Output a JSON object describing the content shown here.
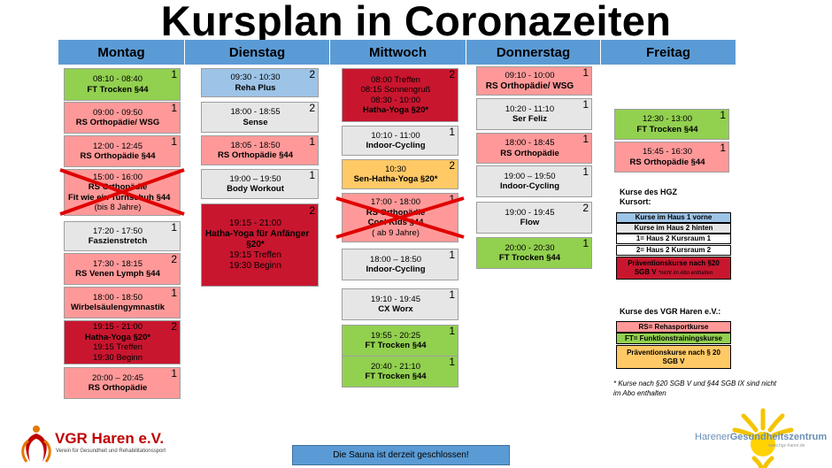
{
  "title": "Kursplan in Coronazeiten",
  "days": [
    "Montag",
    "Dienstag",
    "Mittwoch",
    "Donnerstag",
    "Freitag"
  ],
  "montag": [
    {
      "lines": [
        "08:10 - 08:40",
        "FT Trocken §44"
      ],
      "badge": "1"
    },
    {
      "lines": [
        "09:00 - 09:50",
        "RS Orthopädie/ WSG"
      ],
      "badge": "1"
    },
    {
      "lines": [
        "12:00 - 12:45",
        "RS Orthopädie §44"
      ],
      "badge": "1"
    },
    {
      "lines": [
        "15:00 - 16:00",
        "RS Orthopädie",
        "Fit wie ein Turnschuh §44",
        "(bis 8 Jahre)"
      ],
      "badge": ""
    },
    {
      "lines": [
        "17:20 - 17:50",
        "Faszienstretch"
      ],
      "badge": "1"
    },
    {
      "lines": [
        "17:30 - 18:15",
        "RS Venen Lymph §44"
      ],
      "badge": "2"
    },
    {
      "lines": [
        "18:00 - 18:50",
        "Wirbelsäulengymnastik"
      ],
      "badge": "1"
    },
    {
      "lines": [
        "19:15 - 21:00",
        "Hatha-Yoga §20*",
        "19:15 Treffen",
        "19:30 Beginn"
      ],
      "badge": "2"
    },
    {
      "lines": [
        "20:00 – 20:45",
        "RS Orthopädie"
      ],
      "badge": "1"
    }
  ],
  "dienstag": [
    {
      "lines": [
        "09:30 - 10:30",
        "Reha Plus"
      ],
      "badge": "2"
    },
    {
      "lines": [
        "18:00 - 18:55",
        "Sense"
      ],
      "badge": "2"
    },
    {
      "lines": [
        "18:05 - 18:50",
        "RS Orthopädie §44"
      ],
      "badge": "1"
    },
    {
      "lines": [
        "19:00 – 19:50",
        "Body Workout"
      ],
      "badge": "1"
    },
    {
      "lines": [
        "19:15 - 21:00",
        "Hatha-Yoga für Anfänger",
        "§20*",
        "19:15 Treffen",
        "19:30 Beginn"
      ],
      "badge": "2"
    }
  ],
  "mittwoch": [
    {
      "lines": [
        "08:00 Treffen",
        "08:15 Sonnengruß",
        "08:30 - 10:00",
        "Hatha-Yoga §20*"
      ],
      "badge": "2"
    },
    {
      "lines": [
        "10:10 - 11:00",
        "Indoor-Cycling"
      ],
      "badge": "1"
    },
    {
      "lines": [
        "10:30",
        "Sen-Hatha-Yoga §20*"
      ],
      "badge": "2"
    },
    {
      "lines": [
        "17:00 - 18:00",
        "RS Orthopädie",
        "Cool Kids §44",
        "( ab 9 Jahre)"
      ],
      "badge": "1"
    },
    {
      "lines": [
        "18:00 – 18:50",
        "Indoor-Cycling"
      ],
      "badge": "1"
    },
    {
      "lines": [
        "19:10 - 19:45",
        "CX Worx"
      ],
      "badge": "1"
    },
    {
      "lines": [
        "19:55 - 20:25",
        "FT Trocken §44"
      ],
      "badge": "1"
    },
    {
      "lines": [
        "20:40 - 21:10",
        "FT Trocken §44"
      ],
      "badge": "1"
    }
  ],
  "donnerstag": [
    {
      "lines": [
        "09:10 - 10:00",
        "RS Orthopädie/ WSG"
      ],
      "badge": "1"
    },
    {
      "lines": [
        "10:20 - 11:10",
        "Ser Feliz"
      ],
      "badge": "1"
    },
    {
      "lines": [
        "18:00 - 18:45",
        "RS Orthopädie"
      ],
      "badge": "1"
    },
    {
      "lines": [
        "19:00 – 19:50",
        "Indoor-Cycling"
      ],
      "badge": "1"
    },
    {
      "lines": [
        "19:00 - 19:45",
        "Flow"
      ],
      "badge": "2"
    },
    {
      "lines": [
        "20:00 - 20:30",
        "FT Trocken §44"
      ],
      "badge": "1"
    }
  ],
  "freitag": [
    {
      "lines": [
        "12:30 - 13:00",
        "FT Trocken §44"
      ],
      "badge": "1"
    },
    {
      "lines": [
        "15:45 - 16:30",
        "RS Orthopädie §44"
      ],
      "badge": "1"
    }
  ],
  "legend_hgz": {
    "title_line1": "Kurse des HGZ",
    "title_line2": "Kursort:",
    "items": [
      "Kurse im Haus 1 vorne",
      "Kurse im Haus 2 hinten",
      "1= Haus 2 Kursraum 1",
      "2= Haus 2 Kursraum 2"
    ],
    "prev_line1": "Präventionskurse nach §20",
    "prev_line2": "SGB V",
    "prev_small": "*nicht im Abo enthalten"
  },
  "legend_vgr": {
    "title": "Kurse des VGR Haren e.V.:",
    "items": [
      "RS= Rehasportkurse",
      "FT= Funktionstrainingskurse"
    ],
    "prev_line1": "Präventionskurse nach § 20",
    "prev_line2": "SGB V"
  },
  "note_line1": "* Kurse nach §20 SGB V und §44 SGB IX sind nicht",
  "note_line2": "im Abo enthalten",
  "sauna": "Die Sauna ist derzeit geschlossen!",
  "vgr_logo": {
    "name": "VGR Haren e.V.",
    "sub": "Verein für Gesundheit und Rehabilitationssport"
  },
  "hgz_logo": {
    "name_a": "Harener",
    "name_b": "Gesundheits",
    "name_c": "zentrum",
    "sub": "www.hgz-haren.de"
  },
  "colors": {
    "header": "#5b9bd5",
    "ft_green": "#92d050",
    "rs_pink": "#ff9999",
    "hgz_gray": "#e7e6e6",
    "hgz_blue": "#9dc3e6",
    "prevention_red": "#c9162f",
    "prevention_orange": "#ffc966"
  }
}
